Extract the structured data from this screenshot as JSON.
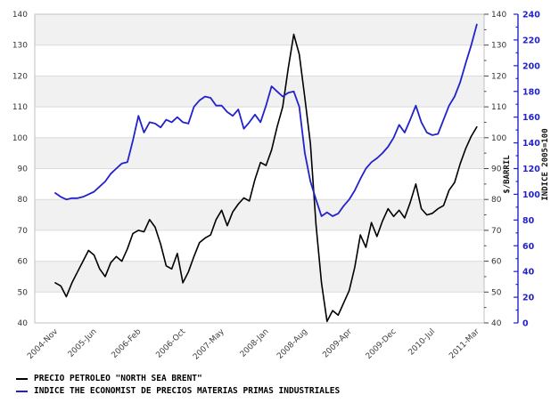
{
  "chart_data": {
    "type": "line",
    "title": "",
    "x_tick_labels": [
      "2004-Nov",
      "2005-Jun",
      "2006-Feb",
      "2006-Oct",
      "2007-May",
      "2008-Jan",
      "2008-Aug",
      "2009-Apr",
      "2009-Dec",
      "2010-Jul",
      "2011-Mar"
    ],
    "x_tick_indices": [
      0,
      7,
      15,
      23,
      30,
      38,
      45,
      53,
      61,
      68,
      76
    ],
    "n_points": 77,
    "left_axis": {
      "min": 40,
      "max": 140,
      "step": 10,
      "label_color": "#333333"
    },
    "right_axis1": {
      "label": "$/BARRIL",
      "min": 40,
      "max": 140,
      "step": 10,
      "minor_step": 5,
      "label_color": "#333333"
    },
    "right_axis2": {
      "label": "INDICE 2005=100",
      "min": 0,
      "max": 240,
      "step": 20,
      "minor_step": 10,
      "color": "#2222CC"
    },
    "grid": "on",
    "band_fill": "#F1F1F1",
    "grid_color": "#DBDBDB",
    "border_color": "#C0C0C0",
    "gray_band_lower_edges": [
      50,
      70,
      90,
      110,
      130
    ],
    "legend_position": "bottom-left",
    "series": [
      {
        "name": "PRECIO PETROLEO \"NORTH SEA BRENT\"",
        "axis": "left",
        "color": "#000000",
        "values": [
          53,
          52,
          48.5,
          53,
          56.5,
          60,
          63.5,
          62,
          57.5,
          55,
          59.5,
          61.5,
          60,
          64,
          69,
          70,
          69.5,
          73.5,
          71,
          65.5,
          58.5,
          57.5,
          62.5,
          53,
          56.5,
          61.5,
          66,
          67.5,
          68.5,
          73.5,
          76.5,
          71.5,
          76,
          78.5,
          80.5,
          79.5,
          86.5,
          92,
          91,
          96,
          103.5,
          110,
          122.5,
          133.5,
          127,
          113,
          98,
          72,
          53,
          40.5,
          44,
          42.5,
          46.5,
          50.5,
          58,
          68.5,
          64.5,
          72.5,
          68,
          73,
          77,
          74.5,
          76.5,
          74,
          79,
          85,
          77,
          75,
          75.5,
          77,
          78,
          83,
          85.5,
          91.5,
          96.5,
          100.5,
          103.5
        ]
      },
      {
        "name": "INDICE THE ECONOMIST DE PRECIOS MATERIAS PRIMAS INDUSTRIALES",
        "axis": "right2",
        "color": "#2222CC",
        "values": [
          101,
          98,
          96,
          97,
          97,
          98,
          100,
          102,
          106,
          110,
          116,
          120,
          124,
          125,
          142,
          161,
          148,
          156,
          155,
          152,
          158,
          156,
          160,
          156,
          155,
          168,
          173,
          176,
          175,
          169,
          169,
          164,
          161,
          166,
          151,
          156,
          162,
          156,
          169,
          184,
          180,
          176,
          179,
          180,
          168,
          132,
          110,
          96,
          83,
          86,
          83,
          85,
          91,
          96,
          103,
          112,
          120,
          125,
          128,
          132,
          137,
          144,
          154,
          148,
          158,
          169,
          156,
          148,
          146,
          147,
          158,
          169,
          176,
          187,
          202,
          216,
          232
        ]
      }
    ]
  },
  "legend": {
    "item1": "PRECIO PETROLEO \"NORTH SEA BRENT\"",
    "item2": "INDICE THE ECONOMIST DE PRECIOS MATERIAS PRIMAS INDUSTRIALES"
  }
}
